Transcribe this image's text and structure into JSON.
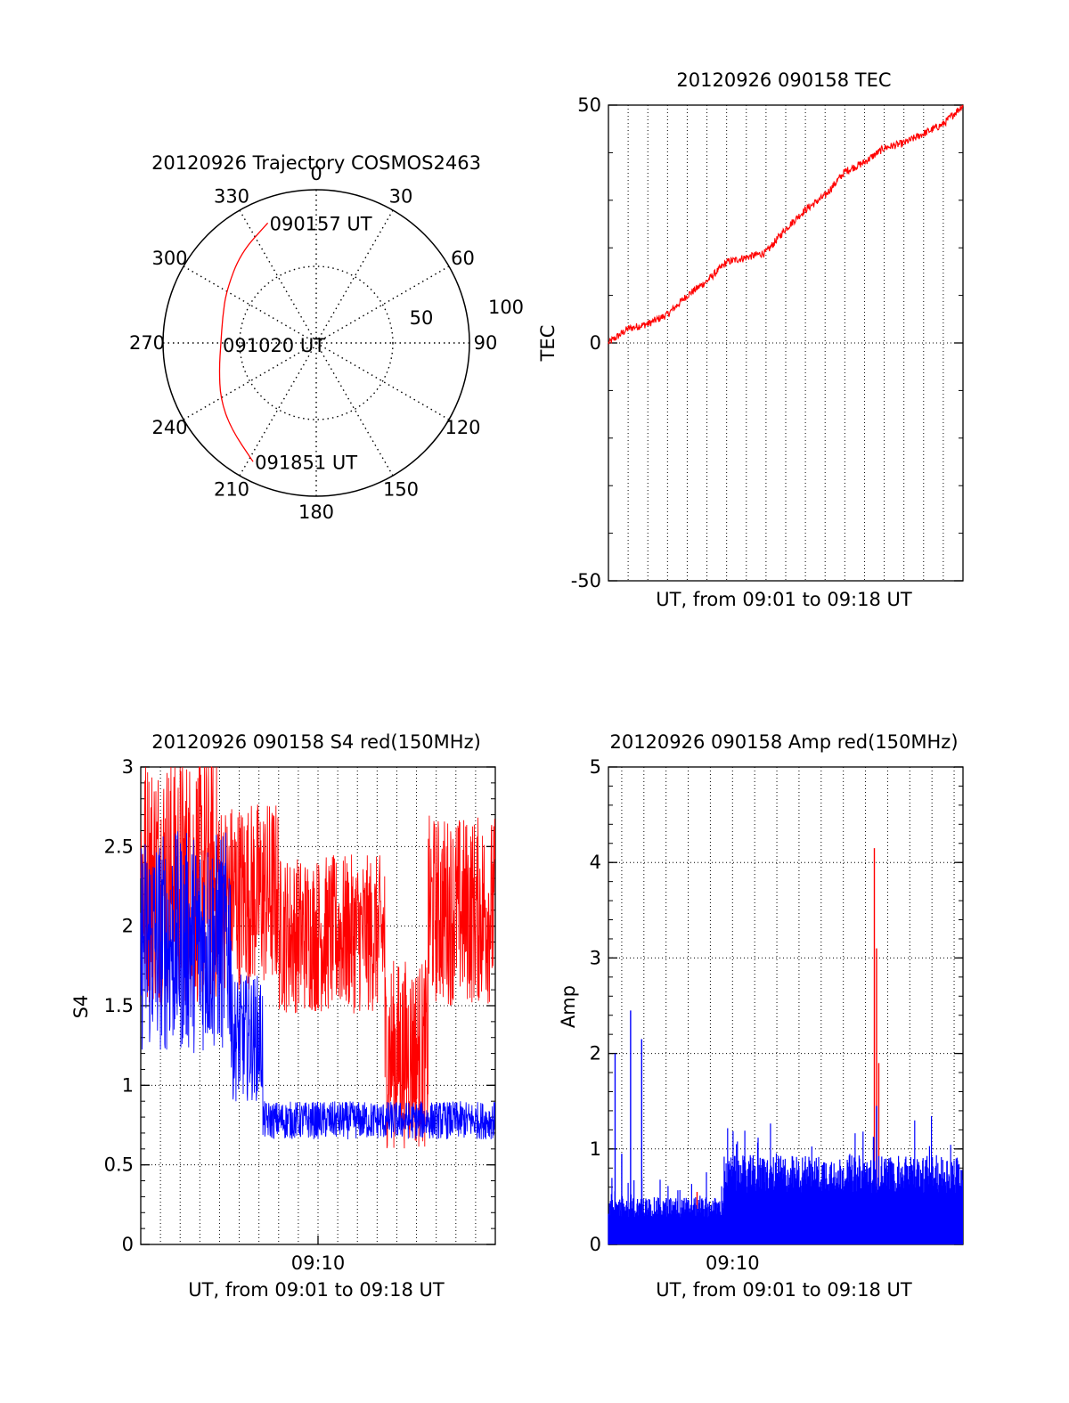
{
  "colors": {
    "red": "#ff0000",
    "blue": "#0000ff",
    "axis": "#000000",
    "grid": "#000000"
  },
  "chart_data": [
    {
      "id": "trajectory",
      "type": "polar",
      "title": "20120926 Trajectory COSMOS2463",
      "angle_labels": [
        "0",
        "30",
        "60",
        "90",
        "120",
        "150",
        "180",
        "210",
        "240",
        "270",
        "300",
        "330"
      ],
      "radius_labels": [
        "50",
        "100"
      ],
      "rlim": [
        0,
        100
      ],
      "annotations": [
        {
          "text": "090157 UT",
          "azimuth": 338,
          "elevation": 14
        },
        {
          "text": "091020 UT",
          "azimuth": 269,
          "elevation": 34
        },
        {
          "text": "091851 UT",
          "azimuth": 208,
          "elevation": 11
        }
      ],
      "track": {
        "color": "red",
        "points": [
          [
            338,
            14
          ],
          [
            320,
            21
          ],
          [
            300,
            29
          ],
          [
            285,
            33
          ],
          [
            270,
            34
          ],
          [
            255,
            31
          ],
          [
            240,
            25
          ],
          [
            225,
            19
          ],
          [
            208,
            11
          ]
        ]
      }
    },
    {
      "id": "tec",
      "type": "line",
      "title": "20120926 090158 TEC",
      "xlabel": "UT, from 09:01 to 09:18 UT",
      "ylabel": "TEC",
      "ylim": [
        -50,
        50
      ],
      "yticks": [
        "-50",
        "0",
        "50"
      ],
      "xlim_minutes": [
        9.0,
        18.0
      ],
      "grid": true,
      "series": [
        {
          "color": "red",
          "x": [
            9.0,
            9.5,
            10.0,
            10.5,
            11.0,
            11.5,
            12.0,
            12.5,
            13.0,
            13.5,
            14.0,
            14.5,
            15.0,
            15.5,
            16.0,
            16.5,
            17.0,
            17.5,
            18.0
          ],
          "y": [
            0,
            3,
            4,
            6,
            10,
            13,
            17,
            18,
            19,
            24,
            28,
            31,
            36,
            38,
            41,
            42,
            44,
            46,
            50
          ]
        }
      ]
    },
    {
      "id": "s4",
      "type": "line",
      "title": "20120926 090158 S4 red(150MHz)",
      "xlabel": "UT, from 09:01 to 09:18 UT",
      "ylabel": "S4",
      "ylim": [
        0,
        3
      ],
      "yticks": [
        "0",
        "0.5",
        "1",
        "1.5",
        "2",
        "2.5",
        "3"
      ],
      "xticks": [
        {
          "value": 10,
          "label": "09:10"
        }
      ],
      "xlim_minutes": [
        5.5,
        14.5
      ],
      "grid": true,
      "series": [
        {
          "color": "red",
          "segments": [
            {
              "from": 5.5,
              "to": 7.5,
              "mean": 2.3,
              "spread": 0.8
            },
            {
              "from": 7.5,
              "to": 9.0,
              "mean": 2.2,
              "spread": 0.6
            },
            {
              "from": 9.0,
              "to": 11.7,
              "mean": 1.95,
              "spread": 0.5
            },
            {
              "from": 11.7,
              "to": 12.8,
              "mean": 1.2,
              "spread": 0.6
            },
            {
              "from": 12.8,
              "to": 14.5,
              "mean": 2.1,
              "spread": 0.6
            }
          ]
        },
        {
          "color": "blue",
          "segments": [
            {
              "from": 5.5,
              "to": 7.8,
              "mean": 1.9,
              "spread": 0.7
            },
            {
              "from": 7.8,
              "to": 8.6,
              "mean": 1.3,
              "spread": 0.4
            },
            {
              "from": 8.6,
              "to": 14.5,
              "mean": 0.78,
              "spread": 0.12
            }
          ]
        }
      ]
    },
    {
      "id": "amp",
      "type": "bar",
      "title": "20120926 090158 Amp red(150MHz)",
      "xlabel": "UT, from 09:01 to 09:18 UT",
      "ylabel": "Amp",
      "ylim": [
        0,
        5
      ],
      "yticks": [
        "0",
        "1",
        "2",
        "3",
        "4",
        "5"
      ],
      "xticks": [
        {
          "value": 10,
          "label": "09:10"
        }
      ],
      "xlim_minutes": [
        7.2,
        15.2
      ],
      "grid": true,
      "series": [
        {
          "color": "red",
          "spikes": [
            {
              "x": 9.2,
              "y": 0.55
            },
            {
              "x": 13.2,
              "y": 4.15
            },
            {
              "x": 13.25,
              "y": 3.1
            },
            {
              "x": 13.3,
              "y": 1.9
            }
          ]
        },
        {
          "color": "blue",
          "levels": [
            {
              "from": 7.2,
              "to": 9.8,
              "value": 0.38
            },
            {
              "from": 9.8,
              "to": 15.2,
              "value": 0.72
            }
          ],
          "spikes": [
            {
              "x": 7.35,
              "y": 2.0
            },
            {
              "x": 7.7,
              "y": 2.45
            },
            {
              "x": 7.95,
              "y": 2.15
            },
            {
              "x": 7.5,
              "y": 0.95
            },
            {
              "x": 13.25,
              "y": 1.45
            }
          ]
        }
      ]
    }
  ]
}
